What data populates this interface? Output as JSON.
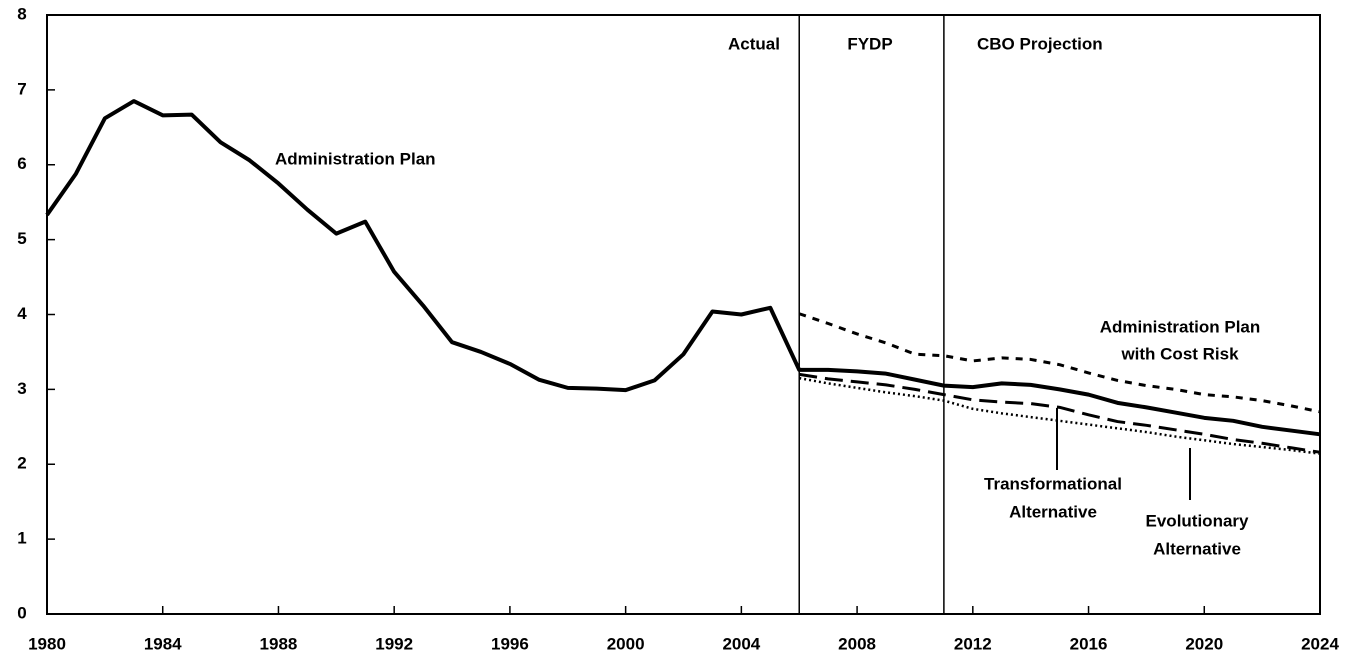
{
  "chart_data": {
    "type": "line",
    "regions": [
      {
        "label": "Actual"
      },
      {
        "label": "FYDP"
      },
      {
        "label": "CBO Projection"
      }
    ],
    "dividers": [
      2006,
      2011
    ],
    "xlim": [
      1980,
      2024
    ],
    "xticks": [
      1980,
      1984,
      1988,
      1992,
      1996,
      2000,
      2004,
      2008,
      2012,
      2016,
      2020,
      2024
    ],
    "ylim": [
      0,
      8
    ],
    "yticks": [
      0,
      1,
      2,
      3,
      4,
      5,
      6,
      7,
      8
    ],
    "series": [
      {
        "label": [
          "Administration Plan"
        ],
        "color": "#000",
        "style": "solid",
        "x": [
          1980,
          1981,
          1982,
          1983,
          1984,
          1985,
          1986,
          1987,
          1988,
          1989,
          1990,
          1991,
          1992,
          1993,
          1994,
          1995,
          1996,
          1997,
          1998,
          1999,
          2000,
          2001,
          2002,
          2003,
          2004,
          2005,
          2006,
          2007,
          2008,
          2009,
          2010,
          2011,
          2012,
          2013,
          2014,
          2015,
          2016,
          2017,
          2018,
          2019,
          2020,
          2021,
          2022,
          2023,
          2024
        ],
        "values": [
          5.33,
          5.88,
          6.62,
          6.85,
          6.66,
          6.67,
          6.3,
          6.06,
          5.75,
          5.4,
          5.08,
          5.24,
          4.57,
          4.12,
          3.63,
          3.5,
          3.34,
          3.13,
          3.02,
          3.01,
          2.99,
          3.12,
          3.47,
          4.04,
          4.0,
          4.09,
          3.26,
          3.26,
          3.24,
          3.21,
          3.13,
          3.05,
          3.03,
          3.08,
          3.06,
          3.0,
          2.93,
          2.82,
          2.76,
          2.69,
          2.62,
          2.58,
          2.5,
          2.45,
          2.4
        ]
      },
      {
        "label": [
          "Administration Plan",
          "with Cost Risk"
        ],
        "color": "#000",
        "style": "dash",
        "x": [
          2006,
          2007,
          2008,
          2009,
          2010,
          2011,
          2012,
          2013,
          2014,
          2015,
          2016,
          2017,
          2018,
          2019,
          2020,
          2021,
          2022,
          2023,
          2024
        ],
        "values": [
          4.01,
          3.88,
          3.74,
          3.62,
          3.47,
          3.45,
          3.38,
          3.42,
          3.4,
          3.33,
          3.22,
          3.12,
          3.05,
          3.0,
          2.93,
          2.9,
          2.85,
          2.78,
          2.7
        ]
      },
      {
        "label": [
          "Transformational",
          "Alternative"
        ],
        "color": "#000",
        "style": "longdash",
        "x": [
          2006,
          2007,
          2008,
          2009,
          2010,
          2011,
          2012,
          2013,
          2014,
          2015,
          2016,
          2017,
          2018,
          2019,
          2020,
          2021,
          2022,
          2023,
          2024
        ],
        "values": [
          3.2,
          3.14,
          3.1,
          3.06,
          3.0,
          2.93,
          2.86,
          2.83,
          2.81,
          2.76,
          2.66,
          2.57,
          2.52,
          2.46,
          2.4,
          2.33,
          2.28,
          2.22,
          2.16
        ]
      },
      {
        "label": [
          "Evolutionary",
          "Alternative"
        ],
        "color": "#000",
        "style": "dot",
        "x": [
          2006,
          2007,
          2008,
          2009,
          2010,
          2011,
          2012,
          2013,
          2014,
          2015,
          2016,
          2017,
          2018,
          2019,
          2020,
          2021,
          2022,
          2023,
          2024
        ],
        "values": [
          3.15,
          3.08,
          3.02,
          2.96,
          2.91,
          2.85,
          2.74,
          2.68,
          2.63,
          2.58,
          2.53,
          2.48,
          2.43,
          2.37,
          2.32,
          2.27,
          2.23,
          2.19,
          2.14
        ]
      }
    ]
  }
}
